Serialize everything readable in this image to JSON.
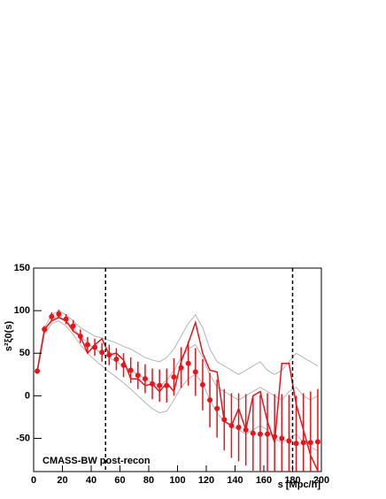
{
  "chart_data": {
    "type": "line",
    "x_label": "s [Mpc/h]",
    "y_label": "s²ξ0(s)",
    "annotation": "CMASS-BW post-recon",
    "xlim": [
      0,
      200
    ],
    "xticks": [
      0,
      20,
      40,
      60,
      80,
      100,
      120,
      140,
      160,
      180,
      200
    ],
    "ylim": [
      -89,
      150
    ],
    "yticks": [
      -50,
      0,
      50,
      100,
      150
    ],
    "vlines": [
      50,
      180
    ],
    "x": [
      2.5,
      7.5,
      12.5,
      17.5,
      22.5,
      27.5,
      32.5,
      37.5,
      42.5,
      47.5,
      52.5,
      57.5,
      62.5,
      67.5,
      72.5,
      77.5,
      82.5,
      87.5,
      92.5,
      97.5,
      102.5,
      107.5,
      112.5,
      117.5,
      122.5,
      127.5,
      132.5,
      137.5,
      142.5,
      147.5,
      152.5,
      157.5,
      162.5,
      167.5,
      172.5,
      177.5,
      182.5,
      187.5,
      192.5,
      197.5
    ],
    "series": [
      {
        "color": "#b4b4b4",
        "values": [
          30,
          80,
          95,
          100,
          95,
          88,
          80,
          75,
          70,
          68,
          65,
          62,
          58,
          55,
          50,
          45,
          42,
          40,
          45,
          55,
          70,
          85,
          95,
          80,
          55,
          40,
          35,
          30,
          25,
          30,
          35,
          40,
          30,
          25,
          30,
          40,
          50,
          45,
          40,
          35
        ]
      },
      {
        "color": "#b4b4b4",
        "values": [
          28,
          76,
          90,
          94,
          88,
          80,
          70,
          62,
          55,
          50,
          45,
          40,
          35,
          30,
          25,
          20,
          15,
          12,
          18,
          30,
          45,
          55,
          60,
          45,
          25,
          10,
          5,
          0,
          -5,
          0,
          5,
          10,
          5,
          0,
          -5,
          5,
          10,
          0,
          -5,
          0
        ]
      },
      {
        "color": "#b4b4b4",
        "values": [
          26,
          72,
          85,
          88,
          82,
          72,
          60,
          50,
          42,
          35,
          28,
          22,
          15,
          8,
          0,
          -8,
          -15,
          -20,
          -18,
          -5,
          10,
          20,
          25,
          15,
          -5,
          -20,
          -30,
          -35,
          -40,
          -45,
          -40,
          -35,
          -40,
          -50,
          -55,
          -50,
          -45,
          -55,
          -60,
          -65
        ]
      },
      {
        "color": "#e8141c",
        "values": [
          29,
          78,
          88,
          92,
          88,
          76,
          70,
          50,
          60,
          67,
          48,
          50,
          42,
          20,
          20,
          12,
          14,
          5,
          15,
          5,
          40,
          62,
          86,
          50,
          30,
          28,
          -30,
          -35,
          -15,
          -40,
          0,
          5,
          -30,
          -55,
          38,
          38,
          -10,
          -40,
          -70,
          -88
        ]
      },
      {
        "color": "#e8141c",
        "markers": true,
        "values": [
          29,
          78,
          93,
          96,
          90,
          82,
          70,
          60,
          57,
          51,
          48,
          43,
          36,
          30,
          24,
          20,
          14,
          12,
          12,
          22,
          33,
          38,
          28,
          13,
          -5,
          -15,
          -28,
          -35,
          -37,
          -40,
          -44,
          -45,
          -45,
          -48,
          -50,
          -53,
          -56,
          -55,
          -55,
          -54
        ],
        "errors": [
          3,
          4,
          5,
          5,
          6,
          7,
          8,
          9,
          10,
          11,
          12,
          13,
          14,
          15,
          16,
          17,
          18,
          19,
          20,
          22,
          24,
          26,
          28,
          30,
          32,
          34,
          36,
          38,
          40,
          42,
          44,
          46,
          48,
          50,
          52,
          54,
          56,
          58,
          60,
          62
        ]
      }
    ]
  }
}
